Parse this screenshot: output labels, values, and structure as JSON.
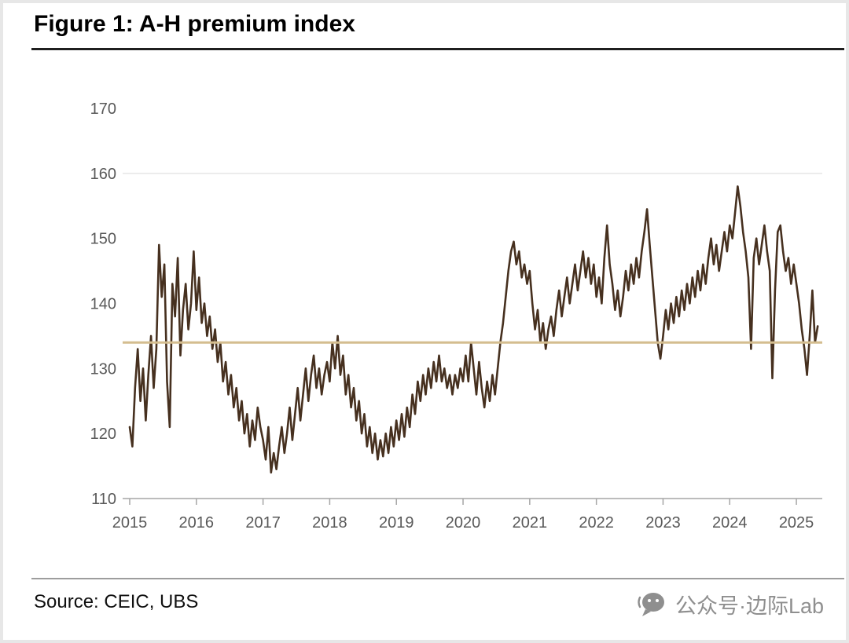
{
  "figure": {
    "title": "Figure 1: A-H premium index",
    "source": "Source: CEIC, UBS",
    "watermark": "公众号·边际Lab"
  },
  "chart_data": {
    "type": "line",
    "title": "A-H premium index",
    "xlabel": "",
    "ylabel": "",
    "xlim": [
      2015,
      2025.4
    ],
    "ylim": [
      110,
      170
    ],
    "y_ticks": [
      110,
      120,
      130,
      140,
      150,
      160,
      170
    ],
    "x_ticks": [
      2015,
      2016,
      2017,
      2018,
      2019,
      2020,
      2021,
      2022,
      2023,
      2024,
      2025
    ],
    "gridlines_y": [
      160
    ],
    "grid_color": "#d9d9d9",
    "axis_color": "#a6a6a6",
    "tick_label_color": "#595959",
    "reference_line": {
      "value": 134,
      "color": "#d4bd8f"
    },
    "series": [
      {
        "name": "A-H premium index",
        "color": "#46301f",
        "x_start": 2015.0,
        "x_step": 0.04,
        "values": [
          121,
          118,
          127,
          133,
          125,
          130,
          122,
          129,
          135,
          127,
          133,
          149,
          141,
          146,
          128,
          121,
          143,
          138,
          147,
          132,
          139,
          143,
          136,
          140,
          148,
          139,
          144,
          137,
          140,
          135,
          138,
          133,
          136,
          131,
          134,
          128,
          131,
          126,
          129,
          124,
          127,
          122,
          125,
          120,
          123,
          118,
          122,
          119,
          124,
          121,
          119,
          116,
          121,
          114,
          117,
          114.5,
          118,
          121,
          117,
          120,
          124,
          119,
          123,
          127,
          122,
          126,
          130,
          125,
          129,
          132,
          127,
          130,
          126,
          129,
          131,
          128,
          134,
          130,
          135,
          129,
          132,
          126,
          129,
          124,
          127,
          122,
          125,
          120,
          123,
          118,
          121,
          117,
          120,
          116,
          119,
          116.5,
          120,
          117,
          121,
          118,
          122,
          119,
          123,
          119.5,
          124,
          121,
          126,
          123,
          128,
          125,
          129,
          126,
          130,
          127,
          131,
          128,
          132,
          128,
          130,
          127,
          129,
          126,
          129,
          127,
          130,
          128,
          132,
          128,
          134,
          130,
          126,
          131,
          127,
          124,
          128,
          125,
          129,
          126,
          130,
          134,
          137,
          141,
          145,
          148,
          149.5,
          146,
          148,
          144,
          146,
          143,
          145,
          140,
          136,
          139,
          134,
          137,
          133,
          136,
          138,
          135,
          139,
          142,
          138,
          141,
          144,
          140,
          143,
          146,
          142,
          145,
          148,
          144,
          147,
          143,
          146,
          141,
          144,
          140,
          147,
          152,
          146,
          143,
          139,
          142,
          138,
          141,
          145,
          142,
          146,
          143,
          147,
          144,
          148,
          151,
          154.5,
          149,
          144,
          139,
          134,
          131.5,
          135,
          139,
          136,
          140,
          137,
          141,
          138,
          142,
          139,
          143,
          140,
          144,
          141,
          145,
          142,
          146,
          143,
          147,
          150,
          146,
          149,
          145,
          148,
          151,
          148,
          152,
          150,
          154,
          158,
          155,
          151,
          148,
          144,
          133,
          147,
          150,
          146,
          149,
          152,
          148,
          145,
          128.5,
          142,
          151,
          152,
          148,
          145,
          147,
          143,
          146,
          143,
          140,
          136,
          133,
          129,
          135,
          142,
          134,
          136.5
        ]
      }
    ]
  }
}
